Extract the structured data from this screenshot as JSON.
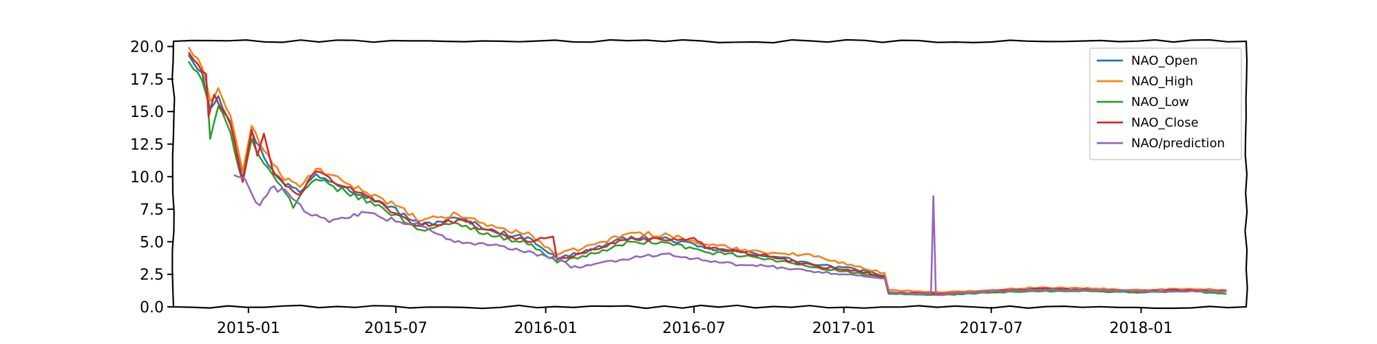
{
  "chart_data": {
    "type": "line",
    "title": "",
    "xlabel": "",
    "ylabel": "",
    "grid": false,
    "legend_position": "top-right",
    "xlim": [
      "2014-10-01",
      "2018-05-10"
    ],
    "ylim": [
      0,
      20.4
    ],
    "x_ticks": [
      "2015-01",
      "2015-07",
      "2016-01",
      "2016-07",
      "2017-01",
      "2017-07",
      "2018-01"
    ],
    "y_ticks": [
      "0.0",
      "2.5",
      "5.0",
      "7.5",
      "10.0",
      "12.5",
      "15.0",
      "17.5",
      "20.0"
    ],
    "series": [
      {
        "name": "NAO_Open",
        "color": "#1f77b4",
        "points": [
          [
            "2014-10-20",
            19.3
          ],
          [
            "2014-11-05",
            18.0
          ],
          [
            "2014-11-15",
            15.2
          ],
          [
            "2014-11-25",
            16.2
          ],
          [
            "2014-12-10",
            14.2
          ],
          [
            "2014-12-25",
            9.8
          ],
          [
            "2015-01-05",
            13.5
          ],
          [
            "2015-01-20",
            11.5
          ],
          [
            "2015-02-10",
            9.7
          ],
          [
            "2015-03-05",
            8.8
          ],
          [
            "2015-03-25",
            10.2
          ],
          [
            "2015-05-01",
            9.2
          ],
          [
            "2015-06-15",
            8.0
          ],
          [
            "2015-08-01",
            6.3
          ],
          [
            "2015-09-15",
            6.8
          ],
          [
            "2015-11-01",
            5.8
          ],
          [
            "2015-12-15",
            5.2
          ],
          [
            "2016-01-15",
            3.7
          ],
          [
            "2016-03-01",
            4.5
          ],
          [
            "2016-04-15",
            5.4
          ],
          [
            "2016-06-01",
            5.2
          ],
          [
            "2016-07-15",
            4.5
          ],
          [
            "2016-09-01",
            4.2
          ],
          [
            "2016-10-15",
            3.8
          ],
          [
            "2016-12-01",
            3.2
          ],
          [
            "2017-01-15",
            2.9
          ],
          [
            "2017-02-20",
            2.4
          ],
          [
            "2017-02-25",
            1.1
          ],
          [
            "2017-05-01",
            1.0
          ],
          [
            "2017-07-01",
            1.2
          ],
          [
            "2017-09-01",
            1.3
          ],
          [
            "2017-11-01",
            1.3
          ],
          [
            "2018-01-01",
            1.2
          ],
          [
            "2018-03-01",
            1.3
          ],
          [
            "2018-04-15",
            1.2
          ]
        ]
      },
      {
        "name": "NAO_High",
        "color": "#ff7f0e",
        "points": [
          [
            "2014-10-20",
            19.9
          ],
          [
            "2014-11-05",
            18.4
          ],
          [
            "2014-11-15",
            15.8
          ],
          [
            "2014-11-25",
            16.8
          ],
          [
            "2014-12-10",
            14.7
          ],
          [
            "2014-12-25",
            10.4
          ],
          [
            "2015-01-05",
            13.9
          ],
          [
            "2015-01-20",
            12.0
          ],
          [
            "2015-02-10",
            10.1
          ],
          [
            "2015-03-05",
            9.2
          ],
          [
            "2015-03-25",
            10.6
          ],
          [
            "2015-05-01",
            9.5
          ],
          [
            "2015-06-15",
            8.3
          ],
          [
            "2015-08-01",
            6.6
          ],
          [
            "2015-09-15",
            7.1
          ],
          [
            "2015-11-01",
            6.1
          ],
          [
            "2015-12-15",
            5.5
          ],
          [
            "2016-01-15",
            4.0
          ],
          [
            "2016-03-01",
            4.8
          ],
          [
            "2016-04-15",
            5.7
          ],
          [
            "2016-06-01",
            5.5
          ],
          [
            "2016-07-15",
            4.8
          ],
          [
            "2016-09-01",
            4.4
          ],
          [
            "2016-10-15",
            4.1
          ],
          [
            "2016-12-01",
            3.9
          ],
          [
            "2017-01-15",
            3.1
          ],
          [
            "2017-02-20",
            2.6
          ],
          [
            "2017-02-25",
            1.3
          ],
          [
            "2017-05-01",
            1.1
          ],
          [
            "2017-07-01",
            1.3
          ],
          [
            "2017-09-01",
            1.5
          ],
          [
            "2017-11-01",
            1.4
          ],
          [
            "2018-01-01",
            1.3
          ],
          [
            "2018-03-01",
            1.4
          ],
          [
            "2018-04-15",
            1.3
          ]
        ]
      },
      {
        "name": "NAO_Low",
        "color": "#2ca02c",
        "points": [
          [
            "2014-10-20",
            18.8
          ],
          [
            "2014-11-05",
            17.4
          ],
          [
            "2014-11-12",
            15.9
          ],
          [
            "2014-11-15",
            12.9
          ],
          [
            "2014-11-25",
            15.4
          ],
          [
            "2014-12-10",
            13.4
          ],
          [
            "2014-12-25",
            9.6
          ],
          [
            "2015-01-05",
            12.9
          ],
          [
            "2015-01-20",
            11.0
          ],
          [
            "2015-02-10",
            9.3
          ],
          [
            "2015-02-25",
            7.6
          ],
          [
            "2015-03-05",
            8.5
          ],
          [
            "2015-03-25",
            9.8
          ],
          [
            "2015-05-01",
            8.8
          ],
          [
            "2015-06-15",
            7.6
          ],
          [
            "2015-08-01",
            5.9
          ],
          [
            "2015-09-15",
            6.4
          ],
          [
            "2015-11-01",
            5.4
          ],
          [
            "2015-12-15",
            4.8
          ],
          [
            "2016-01-15",
            3.4
          ],
          [
            "2016-03-01",
            4.1
          ],
          [
            "2016-04-15",
            5.0
          ],
          [
            "2016-06-01",
            4.9
          ],
          [
            "2016-07-15",
            4.2
          ],
          [
            "2016-09-01",
            3.9
          ],
          [
            "2016-10-15",
            3.5
          ],
          [
            "2016-12-01",
            3.0
          ],
          [
            "2017-01-15",
            2.6
          ],
          [
            "2017-02-20",
            2.2
          ],
          [
            "2017-02-25",
            1.0
          ],
          [
            "2017-05-01",
            0.9
          ],
          [
            "2017-07-01",
            1.1
          ],
          [
            "2017-09-01",
            1.2
          ],
          [
            "2017-11-01",
            1.2
          ],
          [
            "2018-01-01",
            1.1
          ],
          [
            "2018-03-01",
            1.2
          ],
          [
            "2018-04-15",
            1.0
          ]
        ]
      },
      {
        "name": "NAO_Close",
        "color": "#d62728",
        "points": [
          [
            "2014-10-20",
            19.5
          ],
          [
            "2014-11-05",
            18.1
          ],
          [
            "2014-11-10",
            17.9
          ],
          [
            "2014-11-13",
            14.6
          ],
          [
            "2014-11-20",
            16.3
          ],
          [
            "2014-12-01",
            15.0
          ],
          [
            "2014-12-10",
            14.0
          ],
          [
            "2014-12-25",
            9.6
          ],
          [
            "2015-01-05",
            13.6
          ],
          [
            "2015-01-12",
            11.6
          ],
          [
            "2015-01-20",
            13.3
          ],
          [
            "2015-02-01",
            10.2
          ],
          [
            "2015-02-20",
            9.2
          ],
          [
            "2015-03-05",
            8.6
          ],
          [
            "2015-03-25",
            10.4
          ],
          [
            "2015-05-01",
            9.2
          ],
          [
            "2015-06-15",
            7.9
          ],
          [
            "2015-07-20",
            6.4
          ],
          [
            "2015-08-01",
            6.2
          ],
          [
            "2015-09-15",
            6.7
          ],
          [
            "2015-11-01",
            5.7
          ],
          [
            "2015-12-15",
            5.0
          ],
          [
            "2016-01-10",
            5.4
          ],
          [
            "2016-01-15",
            3.6
          ],
          [
            "2016-03-01",
            4.4
          ],
          [
            "2016-04-15",
            5.3
          ],
          [
            "2016-06-01",
            5.1
          ],
          [
            "2016-07-01",
            5.3
          ],
          [
            "2016-07-15",
            4.6
          ],
          [
            "2016-09-01",
            4.2
          ],
          [
            "2016-10-15",
            3.7
          ],
          [
            "2016-12-01",
            3.1
          ],
          [
            "2017-01-15",
            2.8
          ],
          [
            "2017-02-20",
            2.3
          ],
          [
            "2017-02-25",
            1.1
          ],
          [
            "2017-05-01",
            1.0
          ],
          [
            "2017-07-01",
            1.2
          ],
          [
            "2017-09-01",
            1.4
          ],
          [
            "2017-11-01",
            1.3
          ],
          [
            "2018-01-01",
            1.2
          ],
          [
            "2018-03-01",
            1.3
          ],
          [
            "2018-04-15",
            1.2
          ]
        ]
      },
      {
        "name": "NAO/prediction",
        "color": "#9467bd",
        "points": [
          [
            "2014-12-15",
            10.1
          ],
          [
            "2014-12-28",
            9.8
          ],
          [
            "2015-01-05",
            8.7
          ],
          [
            "2015-01-15",
            7.8
          ],
          [
            "2015-01-28",
            9.1
          ],
          [
            "2015-02-15",
            9.0
          ],
          [
            "2015-03-01",
            8.1
          ],
          [
            "2015-03-20",
            7.0
          ],
          [
            "2015-04-10",
            6.5
          ],
          [
            "2015-05-01",
            6.8
          ],
          [
            "2015-05-20",
            7.3
          ],
          [
            "2015-06-15",
            6.8
          ],
          [
            "2015-08-01",
            6.2
          ],
          [
            "2015-09-01",
            5.2
          ],
          [
            "2015-10-01",
            4.9
          ],
          [
            "2015-11-01",
            4.8
          ],
          [
            "2015-12-01",
            4.3
          ],
          [
            "2016-01-01",
            3.9
          ],
          [
            "2016-01-20",
            3.6
          ],
          [
            "2016-02-01",
            3.0
          ],
          [
            "2016-03-01",
            3.3
          ],
          [
            "2016-04-01",
            3.6
          ],
          [
            "2016-05-01",
            3.9
          ],
          [
            "2016-06-01",
            4.1
          ],
          [
            "2016-07-01",
            3.7
          ],
          [
            "2016-08-01",
            3.4
          ],
          [
            "2016-09-01",
            3.2
          ],
          [
            "2016-10-01",
            3.1
          ],
          [
            "2016-11-01",
            2.9
          ],
          [
            "2016-12-01",
            2.7
          ],
          [
            "2017-01-01",
            2.5
          ],
          [
            "2017-02-01",
            2.3
          ],
          [
            "2017-02-20",
            2.2
          ],
          [
            "2017-02-26",
            1.1
          ],
          [
            "2017-04-01",
            1.0
          ],
          [
            "2017-04-18",
            1.0
          ],
          [
            "2017-04-21",
            8.5
          ],
          [
            "2017-04-24",
            0.9
          ],
          [
            "2017-05-10",
            1.0
          ],
          [
            "2017-06-01",
            1.1
          ],
          [
            "2017-07-01",
            1.2
          ],
          [
            "2017-09-01",
            1.3
          ],
          [
            "2017-11-01",
            1.3
          ],
          [
            "2018-01-01",
            1.2
          ],
          [
            "2018-03-01",
            1.2
          ],
          [
            "2018-04-15",
            1.2
          ]
        ]
      }
    ]
  }
}
